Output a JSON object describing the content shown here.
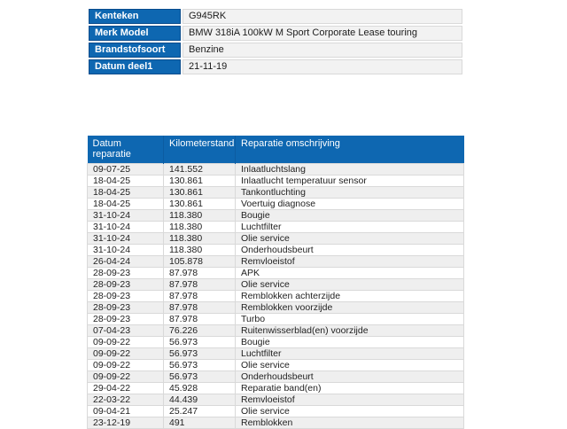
{
  "colors": {
    "header_blue": "#0e67b1",
    "header_blue_dark": "#0a4c8c",
    "header_divider": "#0c5ca1",
    "stripe_grey": "#efefef",
    "value_cell_bg": "#f2f2f2",
    "cell_border": "#d9d9d9"
  },
  "vehicle_info": {
    "rows": [
      {
        "label": "Kenteken",
        "value": "G945RK"
      },
      {
        "label": "Merk Model",
        "value": "BMW 318iA 100kW M Sport Corporate Lease touring"
      },
      {
        "label": "Brandstofsoort",
        "value": "Benzine"
      },
      {
        "label": "Datum deel1",
        "value": "21-11-19"
      }
    ]
  },
  "repairs": {
    "columns": [
      "Datum reparatie",
      "Kilometerstand",
      "Reparatie omschrijving"
    ],
    "rows": [
      {
        "date": "09-07-25",
        "km": "141.552",
        "description": "Inlaatluchtslang"
      },
      {
        "date": "18-04-25",
        "km": "130.861",
        "description": "Inlaatlucht temperatuur sensor"
      },
      {
        "date": "18-04-25",
        "km": "130.861",
        "description": "Tankontluchting"
      },
      {
        "date": "18-04-25",
        "km": "130.861",
        "description": "Voertuig diagnose"
      },
      {
        "date": "31-10-24",
        "km": "118.380",
        "description": "Bougie"
      },
      {
        "date": "31-10-24",
        "km": "118.380",
        "description": "Luchtfilter"
      },
      {
        "date": "31-10-24",
        "km": "118.380",
        "description": "Olie service"
      },
      {
        "date": "31-10-24",
        "km": "118.380",
        "description": "Onderhoudsbeurt"
      },
      {
        "date": "26-04-24",
        "km": "105.878",
        "description": "Remvloeistof"
      },
      {
        "date": "28-09-23",
        "km": "87.978",
        "description": "APK"
      },
      {
        "date": "28-09-23",
        "km": "87.978",
        "description": "Olie service"
      },
      {
        "date": "28-09-23",
        "km": "87.978",
        "description": "Remblokken achterzijde"
      },
      {
        "date": "28-09-23",
        "km": "87.978",
        "description": "Remblokken voorzijde"
      },
      {
        "date": "28-09-23",
        "km": "87.978",
        "description": "Turbo"
      },
      {
        "date": "07-04-23",
        "km": "76.226",
        "description": "Ruitenwisserblad(en) voorzijde"
      },
      {
        "date": "09-09-22",
        "km": "56.973",
        "description": "Bougie"
      },
      {
        "date": "09-09-22",
        "km": "56.973",
        "description": "Luchtfilter"
      },
      {
        "date": "09-09-22",
        "km": "56.973",
        "description": "Olie service"
      },
      {
        "date": "09-09-22",
        "km": "56.973",
        "description": "Onderhoudsbeurt"
      },
      {
        "date": "29-04-22",
        "km": "45.928",
        "description": "Reparatie band(en)"
      },
      {
        "date": "22-03-22",
        "km": "44.439",
        "description": "Remvloeistof"
      },
      {
        "date": "09-04-21",
        "km": "25.247",
        "description": "Olie service"
      },
      {
        "date": "23-12-19",
        "km": "491",
        "description": "Remblokken"
      }
    ]
  }
}
